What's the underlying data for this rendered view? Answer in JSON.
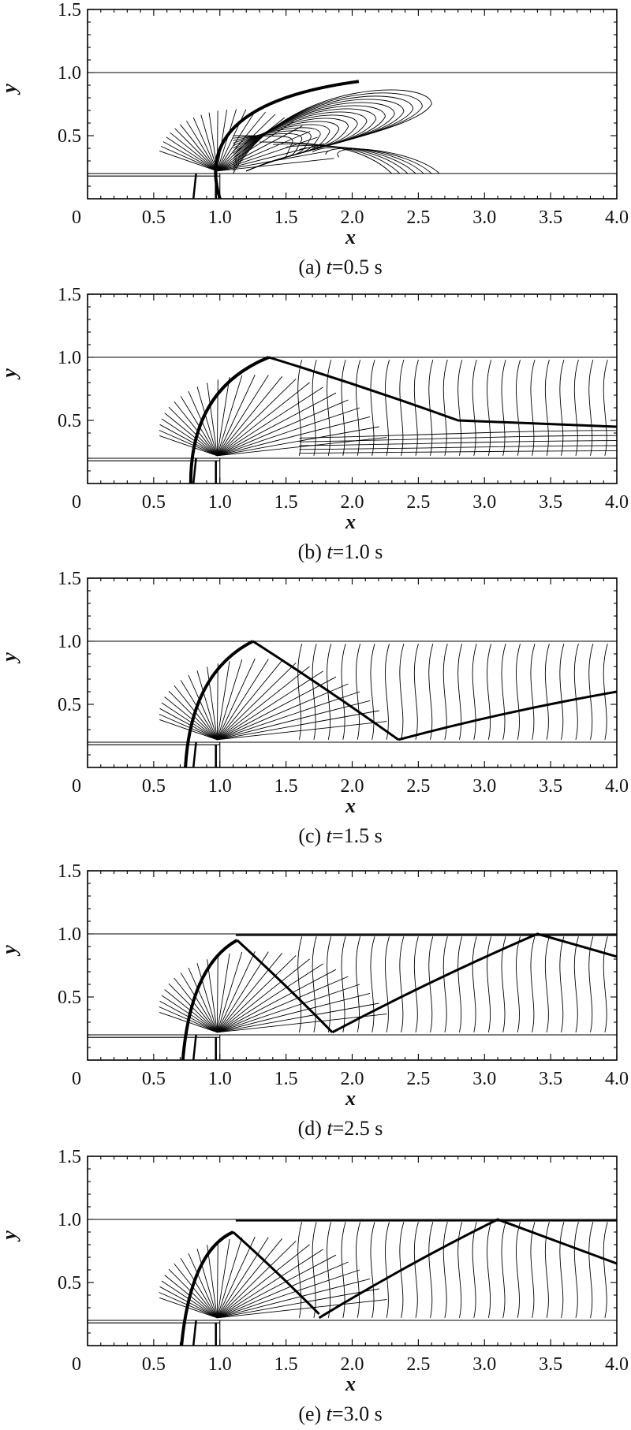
{
  "chart_data": [
    {
      "type": "contour",
      "caption_prefix": "(a) ",
      "caption_var": "t",
      "caption_value": "=0.5 s",
      "xlabel": "x",
      "ylabel": "y",
      "xlim": [
        0,
        4.0
      ],
      "ylim": [
        0,
        1.5
      ],
      "xticks": [
        "0",
        "0.5",
        "1.0",
        "1.5",
        "2.0",
        "2.5",
        "3.0",
        "3.5",
        "4.0"
      ],
      "yticks": [
        "0.5",
        "1.0",
        "1.5"
      ],
      "t": 0.5
    },
    {
      "type": "contour",
      "caption_prefix": "(b) ",
      "caption_var": "t",
      "caption_value": "=1.0 s",
      "xlabel": "x",
      "ylabel": "y",
      "xlim": [
        0,
        4.0
      ],
      "ylim": [
        0,
        1.5
      ],
      "xticks": [
        "0",
        "0.5",
        "1.0",
        "1.5",
        "2.0",
        "2.5",
        "3.0",
        "3.5",
        "4.0"
      ],
      "yticks": [
        "0.5",
        "1.0",
        "1.5"
      ],
      "t": 1.0
    },
    {
      "type": "contour",
      "caption_prefix": "(c) ",
      "caption_var": "t",
      "caption_value": "=1.5 s",
      "xlabel": "x",
      "ylabel": "y",
      "xlim": [
        0,
        4.0
      ],
      "ylim": [
        0,
        1.5
      ],
      "xticks": [
        "0",
        "0.5",
        "1.0",
        "1.5",
        "2.0",
        "2.5",
        "3.0",
        "3.5",
        "4.0"
      ],
      "yticks": [
        "0.5",
        "1.0",
        "1.5"
      ],
      "t": 1.5
    },
    {
      "type": "contour",
      "caption_prefix": "(d) ",
      "caption_var": "t",
      "caption_value": "=2.5 s",
      "xlabel": "x",
      "ylabel": "y",
      "xlim": [
        0,
        4.0
      ],
      "ylim": [
        0,
        1.5
      ],
      "xticks": [
        "0",
        "0.5",
        "1.0",
        "1.5",
        "2.0",
        "2.5",
        "3.0",
        "3.5",
        "4.0"
      ],
      "yticks": [
        "0.5",
        "1.0",
        "1.5"
      ],
      "t": 2.5
    },
    {
      "type": "contour",
      "caption_prefix": "(e) ",
      "caption_var": "t",
      "caption_value": "=3.0 s",
      "xlabel": "x",
      "ylabel": "y",
      "xlim": [
        0,
        4.0
      ],
      "ylim": [
        0,
        1.5
      ],
      "xticks": [
        "0",
        "0.5",
        "1.0",
        "1.5",
        "2.0",
        "2.5",
        "3.0",
        "3.5",
        "4.0"
      ],
      "yticks": [
        "0.5",
        "1.0",
        "1.5"
      ],
      "t": 3.0
    }
  ]
}
